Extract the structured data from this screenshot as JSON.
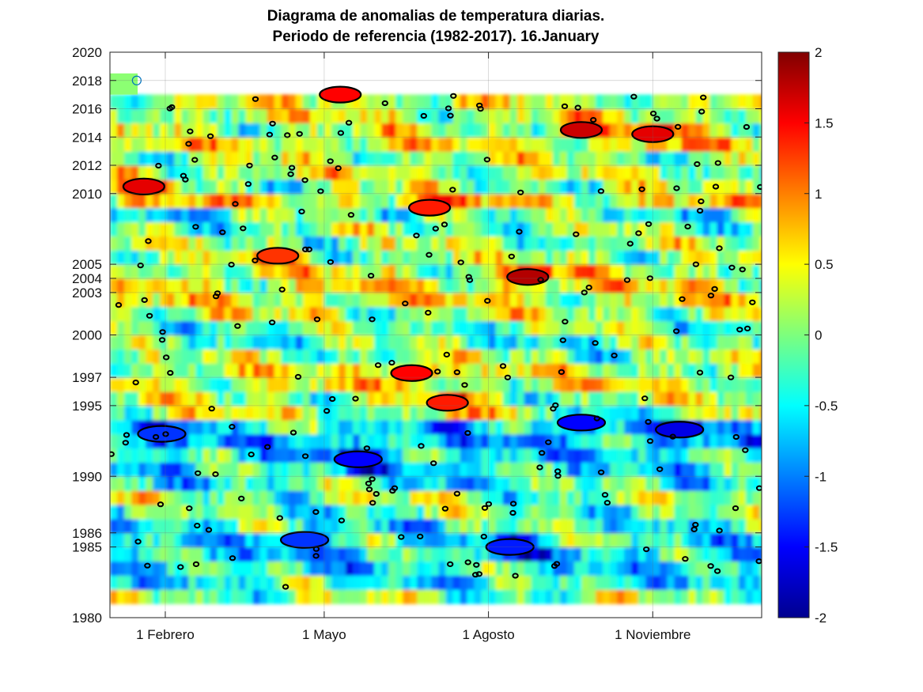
{
  "chart_data": {
    "type": "heatmap",
    "title": "Diagrama de anomalias de temperatura diarias.",
    "subtitle": "Periodo de referencia (1982-2017). 16.January",
    "xlabel": "",
    "ylabel": "",
    "x_ticks": [
      "1 Febrero",
      "1 Mayo",
      "1 Agosto",
      "1 Noviembre"
    ],
    "x_tick_days": [
      32,
      121,
      213,
      305
    ],
    "xlim": [
      1,
      366
    ],
    "y_ticks": [
      1980,
      1985,
      1986,
      1990,
      1995,
      1997,
      2000,
      2003,
      2004,
      2005,
      2010,
      2012,
      2014,
      2016,
      2018,
      2020
    ],
    "ylim": [
      1980,
      2020
    ],
    "data_year_range": [
      1982,
      2017
    ],
    "current_year": 2018,
    "current_marker_day": 16,
    "grid": true,
    "colorbar": {
      "range": [
        -2,
        2
      ],
      "ticks": [
        2,
        1.5,
        1,
        0.5,
        0,
        -0.5,
        -1,
        -1.5,
        -2
      ],
      "tick_labels": [
        "2",
        "1.5",
        "1",
        "0.5",
        "0",
        "-0.5",
        "-1",
        "-1.5",
        "-2"
      ],
      "colormap": "jet"
    },
    "colors": {
      "contour": "#000000",
      "marker": "#0072bd",
      "grid": "#d9d9d9"
    },
    "approx_year_mean_anomaly": {
      "years": [
        1983,
        1984,
        1985,
        1986,
        1987,
        1988,
        1989,
        1990,
        1991,
        1992,
        1993,
        1994,
        1995,
        1996,
        1997,
        1998,
        1999,
        2000,
        2001,
        2002,
        2003,
        2004,
        2005,
        2006,
        2007,
        2008,
        2009,
        2010,
        2011,
        2012,
        2013,
        2014,
        2015,
        2016,
        2017
      ],
      "values": [
        -0.4,
        -0.5,
        -0.6,
        -0.4,
        -0.3,
        -0.2,
        0.0,
        -0.3,
        -0.5,
        -0.6,
        -0.7,
        -0.5,
        0.2,
        0.1,
        0.3,
        0.3,
        0.0,
        -0.2,
        -0.1,
        0.2,
        0.4,
        0.4,
        0.3,
        0.1,
        0.0,
        -0.1,
        -0.3,
        0.5,
        0.0,
        0.2,
        0.1,
        0.4,
        0.2,
        0.3,
        0.2
      ]
    },
    "warm_anomaly_regions": [
      {
        "day": 20,
        "year": 2010.5,
        "value": 1.6
      },
      {
        "day": 170,
        "year": 1997.3,
        "value": 1.5
      },
      {
        "day": 235,
        "year": 2004.1,
        "value": 1.8
      },
      {
        "day": 265,
        "year": 2014.5,
        "value": 1.7
      },
      {
        "day": 305,
        "year": 2014.2,
        "value": 1.6
      },
      {
        "day": 190,
        "year": 1995.2,
        "value": 1.4
      },
      {
        "day": 130,
        "year": 2017.0,
        "value": 1.5
      },
      {
        "day": 180,
        "year": 2009.0,
        "value": 1.4
      },
      {
        "day": 95,
        "year": 2005.6,
        "value": 1.3
      }
    ],
    "cold_anomaly_regions": [
      {
        "day": 140,
        "year": 1991.2,
        "value": -1.5
      },
      {
        "day": 320,
        "year": 1993.3,
        "value": -1.6
      },
      {
        "day": 225,
        "year": 1985.0,
        "value": -1.4
      },
      {
        "day": 110,
        "year": 1985.5,
        "value": -1.3
      },
      {
        "day": 30,
        "year": 1993.0,
        "value": -1.3
      },
      {
        "day": 265,
        "year": 1993.8,
        "value": -1.5
      }
    ]
  }
}
